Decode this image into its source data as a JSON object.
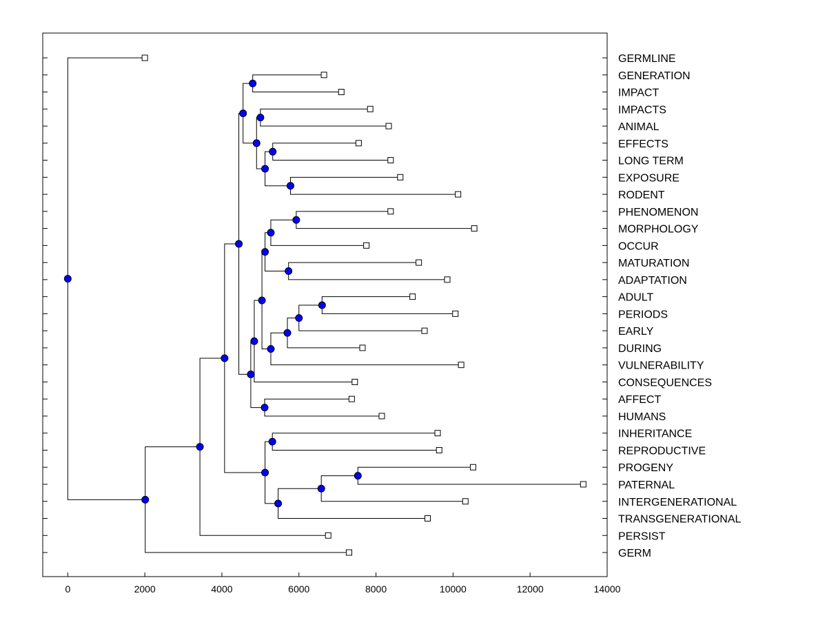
{
  "chart_data": {
    "type": "dendrogram",
    "title": "",
    "xlabel": "",
    "ylabel": "",
    "xlim": [
      -650,
      14000
    ],
    "xticks": [
      0,
      2000,
      4000,
      6000,
      8000,
      10000,
      12000,
      14000
    ],
    "xtick_labels": [
      "0",
      "2000",
      "4000",
      "6000",
      "8000",
      "10000",
      "12000",
      "14000"
    ],
    "colors": {
      "node": "#0000ff",
      "line": "#000000",
      "leaf_fill": "#ffffff"
    },
    "leaves": [
      {
        "label": "GERMLINE",
        "x": 2000
      },
      {
        "label": "GENERATION",
        "x": 6650
      },
      {
        "label": "IMPACT",
        "x": 7100
      },
      {
        "label": "IMPACTS",
        "x": 7850
      },
      {
        "label": "ANIMAL",
        "x": 8330
      },
      {
        "label": "EFFECTS",
        "x": 7550
      },
      {
        "label": "LONG TERM",
        "x": 8380
      },
      {
        "label": "EXPOSURE",
        "x": 8630
      },
      {
        "label": "RODENT",
        "x": 10130
      },
      {
        "label": "PHENOMENON",
        "x": 8380
      },
      {
        "label": "MORPHOLOGY",
        "x": 10550
      },
      {
        "label": "OCCUR",
        "x": 7750
      },
      {
        "label": "MATURATION",
        "x": 9110
      },
      {
        "label": "ADAPTATION",
        "x": 9850
      },
      {
        "label": "ADULT",
        "x": 8950
      },
      {
        "label": "PERIODS",
        "x": 10060
      },
      {
        "label": "EARLY",
        "x": 9260
      },
      {
        "label": "DURING",
        "x": 7650
      },
      {
        "label": "VULNERABILITY",
        "x": 10210
      },
      {
        "label": "CONSEQUENCES",
        "x": 7450
      },
      {
        "label": "AFFECT",
        "x": 7370
      },
      {
        "label": "HUMANS",
        "x": 8150
      },
      {
        "label": "INHERITANCE",
        "x": 9600
      },
      {
        "label": "REPRODUCTIVE",
        "x": 9640
      },
      {
        "label": "PROGENY",
        "x": 10520
      },
      {
        "label": "PATERNAL",
        "x": 13380
      },
      {
        "label": "INTERGENERATIONAL",
        "x": 10320
      },
      {
        "label": "TRANSGENERATIONAL",
        "x": 9340
      },
      {
        "label": "PERSIST",
        "x": 6760
      },
      {
        "label": "GERM",
        "x": 7300
      }
    ],
    "nodes": [
      {
        "id": "n1",
        "x": 4800,
        "children": [
          1,
          2
        ]
      },
      {
        "id": "n2",
        "x": 5000,
        "children": [
          3,
          4
        ]
      },
      {
        "id": "n3",
        "x": 5320,
        "children": [
          5,
          6
        ]
      },
      {
        "id": "n4",
        "x": 5780,
        "children": [
          7,
          8
        ]
      },
      {
        "id": "n5",
        "x": 5120,
        "children": [
          "n3",
          "n4"
        ]
      },
      {
        "id": "n6",
        "x": 4900,
        "children": [
          "n2",
          "n5"
        ]
      },
      {
        "id": "n7",
        "x": 4550,
        "children": [
          "n1",
          "n6"
        ]
      },
      {
        "id": "n8",
        "x": 5930,
        "children": [
          9,
          10
        ]
      },
      {
        "id": "n9",
        "x": 5270,
        "children": [
          "n8",
          11
        ]
      },
      {
        "id": "n10",
        "x": 5730,
        "children": [
          12,
          13
        ]
      },
      {
        "id": "n11",
        "x": 5120,
        "children": [
          "n9",
          "n10"
        ]
      },
      {
        "id": "n12",
        "x": 6600,
        "children": [
          14,
          15
        ]
      },
      {
        "id": "n13",
        "x": 6000,
        "children": [
          "n12",
          16
        ]
      },
      {
        "id": "n14",
        "x": 5700,
        "children": [
          "n13",
          17
        ]
      },
      {
        "id": "n15",
        "x": 5270,
        "children": [
          "n14",
          18
        ]
      },
      {
        "id": "n16",
        "x": 5040,
        "children": [
          "n11",
          "n15"
        ]
      },
      {
        "id": "n17",
        "x": 4840,
        "children": [
          "n16",
          19
        ]
      },
      {
        "id": "n18",
        "x": 5110,
        "children": [
          20,
          21
        ]
      },
      {
        "id": "n19",
        "x": 4750,
        "children": [
          "n17",
          "n18"
        ]
      },
      {
        "id": "n20",
        "x": 4440,
        "children": [
          "n7",
          "n19"
        ]
      },
      {
        "id": "n21",
        "x": 5310,
        "children": [
          22,
          23
        ]
      },
      {
        "id": "n22",
        "x": 7530,
        "children": [
          24,
          25
        ]
      },
      {
        "id": "n23",
        "x": 6580,
        "children": [
          "n22",
          26
        ]
      },
      {
        "id": "n24",
        "x": 5460,
        "children": [
          "n23",
          27
        ]
      },
      {
        "id": "n25",
        "x": 5120,
        "children": [
          "n21",
          "n24"
        ]
      },
      {
        "id": "n26",
        "x": 4070,
        "children": [
          "n20",
          "n25"
        ]
      },
      {
        "id": "n27",
        "x": 3430,
        "children": [
          "n26",
          28
        ]
      },
      {
        "id": "n28",
        "x": 2010,
        "children": [
          "n27",
          29
        ]
      },
      {
        "id": "n29",
        "x": 0,
        "children": [
          0,
          "n28"
        ]
      }
    ]
  }
}
